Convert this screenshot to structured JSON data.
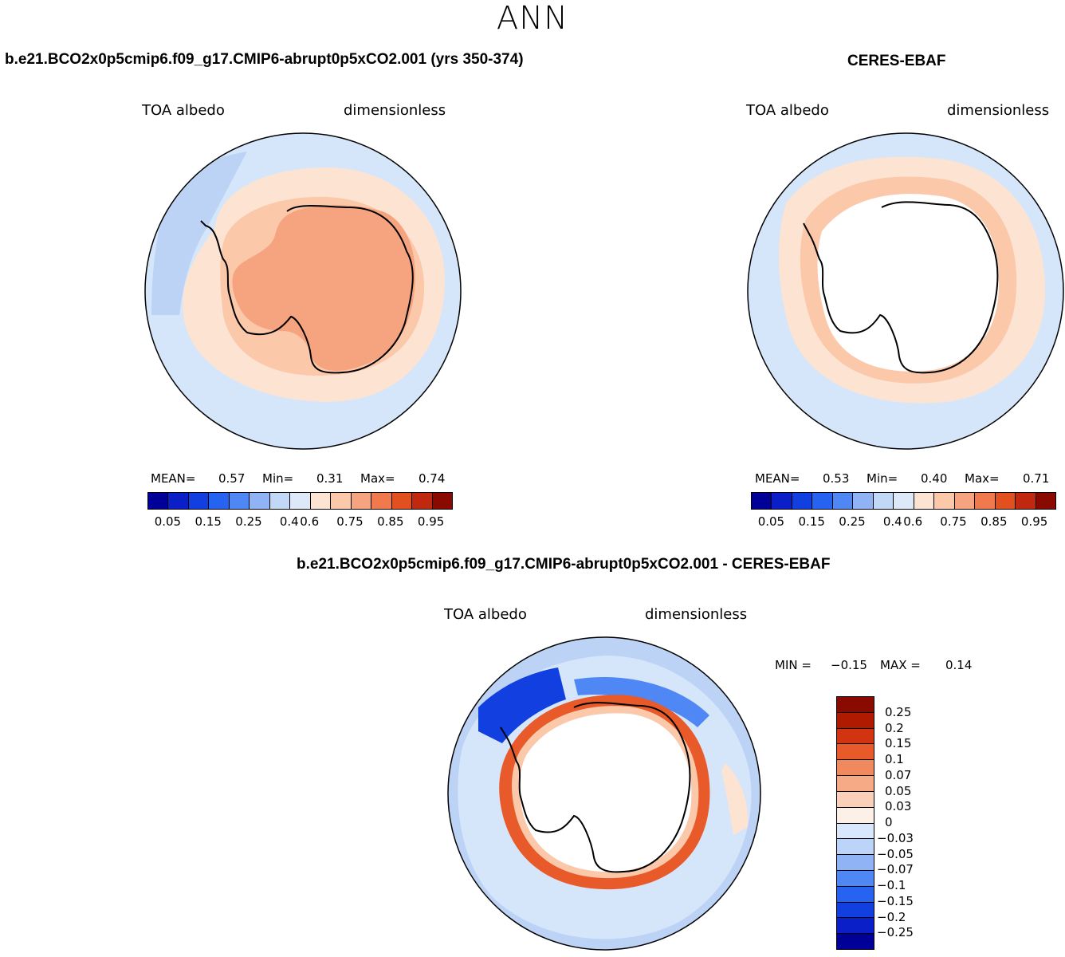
{
  "season": "ANN",
  "palette": {
    "cb15": [
      "#000099",
      "#0a1fc7",
      "#1240e0",
      "#2563f0",
      "#4f88f5",
      "#8fb3f5",
      "#c2d8f7",
      "#dde9f9",
      "#fde3d2",
      "#fbc8aa",
      "#f6a37f",
      "#f07a4e",
      "#e3501f",
      "#c0290f",
      "#8a0a00"
    ],
    "cb16": [
      "#000099",
      "#0a1fc7",
      "#1240e0",
      "#2563f0",
      "#4f88f5",
      "#8fb3f5",
      "#bcd4f7",
      "#d8e7fb",
      "#fdf0e6",
      "#fbd0b8",
      "#f6aa86",
      "#f08a5e",
      "#e85a2a",
      "#d23310",
      "#b01a00",
      "#8a0a00"
    ],
    "ocean_light": "#d5e6fb",
    "ocean_mid": "#bcd3f6",
    "peach_light": "#fde3d2",
    "peach_mid": "#fbc8aa",
    "salmon": "#f6a37f",
    "red_ring": "#e85a2a",
    "blue_dark": "#1240e0"
  },
  "panel_left": {
    "title": "b.e21.BCO2x0p5cmip6.f09_g17.CMIP6-abrupt0p5xCO2.001 (yrs 350-374)",
    "var_label": "TOA albedo",
    "units": "dimensionless",
    "stats": {
      "mean_label": "MEAN=",
      "mean": "0.57",
      "min_label": "Min=",
      "min": "0.31",
      "max_label": "Max=",
      "max": "0.74"
    }
  },
  "panel_right": {
    "title": "CERES-EBAF",
    "var_label": "TOA albedo",
    "units": "dimensionless",
    "stats": {
      "mean_label": "MEAN=",
      "mean": "0.53",
      "min_label": "Min=",
      "min": "0.40",
      "max_label": "Max=",
      "max": "0.71"
    }
  },
  "colorbar_ticks": [
    "0.05",
    "0.15",
    "0.25",
    "0.4",
    "0.6",
    "0.75",
    "0.85",
    "0.95"
  ],
  "panel_diff": {
    "title": "b.e21.BCO2x0p5cmip6.f09_g17.CMIP6-abrupt0p5xCO2.001 - CERES-EBAF",
    "var_label": "TOA albedo",
    "units": "dimensionless",
    "stats": {
      "min_label": "MIN =",
      "min": "−0.15",
      "max_label": "MAX =",
      "max": "0.14"
    },
    "levels": [
      "0.25",
      "0.2",
      "0.15",
      "0.1",
      "0.07",
      "0.05",
      "0.03",
      "0",
      "−0.03",
      "−0.05",
      "−0.07",
      "−0.1",
      "−0.15",
      "−0.2",
      "−0.25"
    ]
  }
}
